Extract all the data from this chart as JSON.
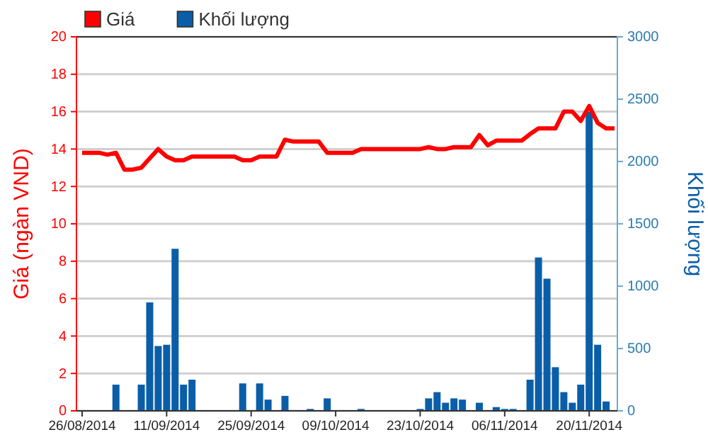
{
  "chart_data": {
    "type": "line",
    "ylabel": "Giá (ngàn VND)",
    "y2label": "Khối lượng",
    "categories": [
      "26/08/2014",
      null,
      null,
      null,
      null,
      null,
      null,
      null,
      null,
      null,
      "11/09/2014",
      null,
      null,
      null,
      null,
      null,
      null,
      null,
      null,
      null,
      "25/09/2014",
      null,
      null,
      null,
      null,
      null,
      null,
      null,
      null,
      null,
      "09/10/2014",
      null,
      null,
      null,
      null,
      null,
      null,
      null,
      null,
      null,
      "23/10/2014",
      null,
      null,
      null,
      null,
      null,
      null,
      null,
      null,
      null,
      "06/11/2014",
      null,
      null,
      null,
      null,
      null,
      null,
      null,
      null,
      null,
      "20/11/2014",
      null,
      null,
      null
    ],
    "series": [
      {
        "name": "Giá",
        "color": "#ff0000",
        "values": [
          13.8,
          13.8,
          13.8,
          13.7,
          13.8,
          12.9,
          12.9,
          13.0,
          13.5,
          14.0,
          13.6,
          13.4,
          13.4,
          13.6,
          13.6,
          13.6,
          13.6,
          13.6,
          13.6,
          13.4,
          13.4,
          13.6,
          13.6,
          13.6,
          14.5,
          14.4,
          14.4,
          14.4,
          14.4,
          13.8,
          13.8,
          13.8,
          13.8,
          14.0,
          14.0,
          14.0,
          14.0,
          14.0,
          14.0,
          14.0,
          14.0,
          14.1,
          14.0,
          14.0,
          14.1,
          14.1,
          14.1,
          14.75,
          14.2,
          14.45,
          14.45,
          14.45,
          14.45,
          14.8,
          15.1,
          15.1,
          15.1,
          16.0,
          16.0,
          15.5,
          16.3,
          15.4,
          15.1,
          15.1
        ]
      },
      {
        "name": "Khối lượng",
        "type": "bar",
        "axis": "y2",
        "color": "#0a5ea8",
        "values": [
          null,
          null,
          null,
          null,
          210,
          null,
          null,
          210,
          870,
          520,
          530,
          1300,
          210,
          250,
          null,
          null,
          null,
          null,
          null,
          220,
          null,
          220,
          90,
          null,
          120,
          null,
          null,
          15,
          null,
          100,
          null,
          null,
          null,
          15,
          null,
          null,
          null,
          null,
          null,
          null,
          15,
          100,
          150,
          65,
          100,
          90,
          null,
          65,
          null,
          30,
          15,
          15,
          null,
          250,
          1230,
          1060,
          350,
          150,
          65,
          210,
          2400,
          530,
          75,
          null
        ]
      }
    ],
    "ylim": [
      0,
      20
    ],
    "yticks": [
      0,
      2,
      4,
      6,
      8,
      10,
      12,
      14,
      16,
      18,
      20
    ],
    "y2lim": [
      0,
      3000
    ],
    "y2ticks": [
      0,
      500,
      1000,
      1500,
      2000,
      2500,
      3000
    ],
    "grid": "y",
    "legend": "top left",
    "line_style": "solid",
    "marker": "none"
  }
}
